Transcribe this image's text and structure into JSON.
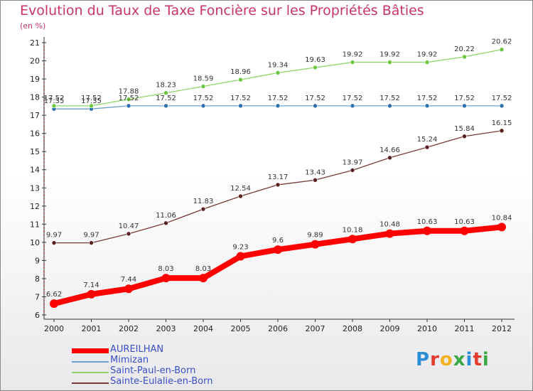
{
  "title": "Evolution du Taux de Taxe Foncière sur les Propriétés Bâties",
  "unit_label": "(en %)",
  "logo": {
    "text": "Proxiti",
    "colors": [
      "#2c8fd6",
      "#e33b2c",
      "#f2b21e",
      "#3aa845",
      "#2c8fd6",
      "#e33b2c",
      "#3aa845"
    ]
  },
  "chart_data": {
    "type": "line",
    "title": "Evolution du Taux de Taxe Foncière sur les Propriétés Bâties",
    "ylabel": "(en %)",
    "xlabel": "",
    "x": [
      "2000",
      "2001",
      "2002",
      "2003",
      "2004",
      "2005",
      "2006",
      "2007",
      "2008",
      "2009",
      "2010",
      "2011",
      "2012"
    ],
    "ylim": [
      6,
      21
    ],
    "yticks": [
      "6",
      "7",
      "8",
      "9",
      "10",
      "11",
      "12",
      "13",
      "14",
      "15",
      "16",
      "17",
      "18",
      "19",
      "20",
      "21"
    ],
    "grid": false,
    "legend_position": "bottom-left",
    "series": [
      {
        "name": "AUREILHAN",
        "color": "#ff0000",
        "markerColor": "#ff0000",
        "bold": true,
        "values": [
          6.62,
          7.14,
          7.44,
          8.03,
          8.03,
          9.23,
          9.6,
          9.89,
          10.18,
          10.48,
          10.63,
          10.63,
          10.84
        ],
        "labels": [
          "6.62",
          "7.14",
          "7.44",
          "8.03",
          "8.03",
          "9.23",
          "9.6",
          "9.89",
          "10.18",
          "10.48",
          "10.63",
          "10.63",
          "10.84"
        ]
      },
      {
        "name": "Mimizan",
        "color": "#6a9fcf",
        "markerColor": "#2e6fad",
        "bold": false,
        "values": [
          17.35,
          17.35,
          17.52,
          17.52,
          17.52,
          17.52,
          17.52,
          17.52,
          17.52,
          17.52,
          17.52,
          17.52,
          17.52
        ],
        "labels": [
          "17.35",
          "17.35",
          "17.52",
          "17.52",
          "17.52",
          "17.52",
          "17.52",
          "17.52",
          "17.52",
          "17.52",
          "17.52",
          "17.52",
          "17.52"
        ]
      },
      {
        "name": "Saint-Paul-en-Born",
        "color": "#8fd46a",
        "markerColor": "#6cc63f",
        "bold": false,
        "values": [
          17.52,
          17.52,
          17.88,
          18.23,
          18.59,
          18.96,
          19.34,
          19.63,
          19.92,
          19.92,
          19.92,
          20.22,
          20.62
        ],
        "labels": [
          "17.52",
          "17.52",
          "17.88",
          "18.23",
          "18.59",
          "18.96",
          "19.34",
          "19.63",
          "19.92",
          "19.92",
          "19.92",
          "20.22",
          "20.62"
        ]
      },
      {
        "name": "Sainte-Eulalie-en-Born",
        "color": "#7a3a3a",
        "markerColor": "#5a1f1f",
        "bold": false,
        "values": [
          9.97,
          9.97,
          10.47,
          11.06,
          11.83,
          12.54,
          13.17,
          13.43,
          13.97,
          14.66,
          15.24,
          15.84,
          16.15
        ],
        "labels": [
          "9.97",
          "9.97",
          "10.47",
          "11.06",
          "11.83",
          "12.54",
          "13.17",
          "13.43",
          "13.97",
          "14.66",
          "15.24",
          "15.84",
          "16.15"
        ]
      }
    ]
  }
}
